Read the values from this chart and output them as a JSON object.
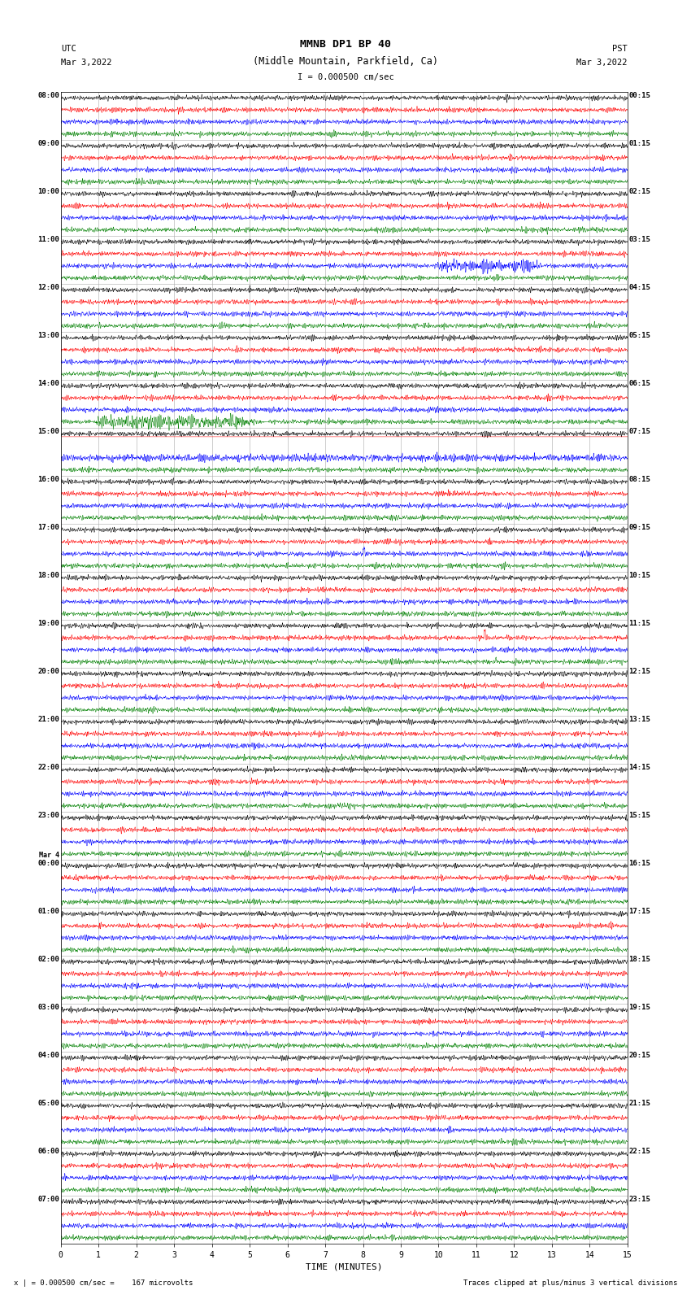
{
  "title_line1": "MMNB DP1 BP 40",
  "title_line2": "(Middle Mountain, Parkfield, Ca)",
  "scale_label": "I = 0.000500 cm/sec",
  "left_header": "UTC",
  "left_date": "Mar 3,2022",
  "right_header": "PST",
  "right_date": "Mar 3,2022",
  "xlabel": "TIME (MINUTES)",
  "footer_left": "x | = 0.000500 cm/sec =    167 microvolts",
  "footer_right": "Traces clipped at plus/minus 3 vertical divisions",
  "x_ticks": [
    0,
    1,
    2,
    3,
    4,
    5,
    6,
    7,
    8,
    9,
    10,
    11,
    12,
    13,
    14,
    15
  ],
  "utc_labels": [
    "08:00",
    "09:00",
    "10:00",
    "11:00",
    "12:00",
    "13:00",
    "14:00",
    "15:00",
    "16:00",
    "17:00",
    "18:00",
    "19:00",
    "20:00",
    "21:00",
    "22:00",
    "23:00",
    "Mar 4\n00:00",
    "01:00",
    "02:00",
    "03:00",
    "04:00",
    "05:00",
    "06:00",
    "07:00"
  ],
  "pst_labels": [
    "00:15",
    "01:15",
    "02:15",
    "03:15",
    "04:15",
    "05:15",
    "06:15",
    "07:15",
    "08:15",
    "09:15",
    "10:15",
    "11:15",
    "12:15",
    "13:15",
    "14:15",
    "15:15",
    "16:15",
    "17:15",
    "18:15",
    "19:15",
    "20:15",
    "21:15",
    "22:15",
    "23:15"
  ],
  "n_rows": 24,
  "n_traces_per_row": 4,
  "trace_colors": [
    "black",
    "red",
    "blue",
    "green"
  ],
  "minutes": 15,
  "samples_per_minute": 200,
  "background_color": "white",
  "trace_amplitude": 0.28,
  "clip_divisions": 3
}
